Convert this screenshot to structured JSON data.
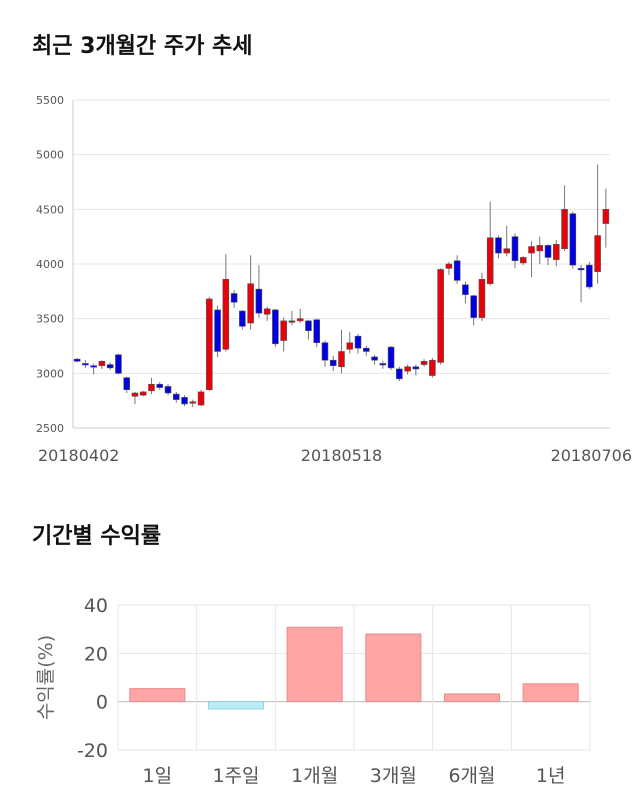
{
  "titles": {
    "price_chart": "최근 3개월간 주가 추세",
    "return_chart": "기간별 수익률"
  },
  "colors": {
    "up": "#e8000b",
    "down": "#0000e0",
    "bar_positive": "#ffa5a5",
    "bar_negative": "#b9ecf6"
  },
  "chart_data": [
    {
      "type": "candlestick",
      "title": "최근 3개월간 주가 추세",
      "ylim": [
        2500,
        5500
      ],
      "yticks": [
        2500,
        3000,
        3500,
        4000,
        4500,
        5000,
        5500
      ],
      "xtick_labels": [
        "20180402",
        "20180518",
        "20180706"
      ],
      "xtick_index": [
        0,
        32,
        64
      ],
      "grid": true,
      "candles": [
        [
          3130,
          3110,
          3140,
          3100
        ],
        [
          3090,
          3080,
          3120,
          3050
        ],
        [
          3070,
          3060,
          3090,
          2990
        ],
        [
          3070,
          3110,
          3120,
          3040
        ],
        [
          3080,
          3050,
          3100,
          3030
        ],
        [
          3170,
          3000,
          3180,
          2990
        ],
        [
          2960,
          2850,
          2970,
          2820
        ],
        [
          2790,
          2820,
          2830,
          2720
        ],
        [
          2800,
          2830,
          2840,
          2790
        ],
        [
          2840,
          2900,
          2960,
          2810
        ],
        [
          2900,
          2870,
          2920,
          2850
        ],
        [
          2880,
          2820,
          2900,
          2800
        ],
        [
          2810,
          2760,
          2830,
          2730
        ],
        [
          2780,
          2720,
          2800,
          2700
        ],
        [
          2730,
          2740,
          2760,
          2690
        ],
        [
          2710,
          2830,
          2850,
          2700
        ],
        [
          2850,
          3680,
          3700,
          2840
        ],
        [
          3580,
          3200,
          3620,
          3150
        ],
        [
          3220,
          3860,
          4090,
          3200
        ],
        [
          3730,
          3650,
          3760,
          3600
        ],
        [
          3570,
          3430,
          3580,
          3400
        ],
        [
          3460,
          3820,
          4080,
          3400
        ],
        [
          3770,
          3550,
          3990,
          3510
        ],
        [
          3540,
          3590,
          3610,
          3480
        ],
        [
          3580,
          3270,
          3590,
          3240
        ],
        [
          3300,
          3480,
          3510,
          3200
        ],
        [
          3480,
          3480,
          3570,
          3440
        ],
        [
          3480,
          3500,
          3590,
          3460
        ],
        [
          3480,
          3390,
          3490,
          3310
        ],
        [
          3490,
          3280,
          3500,
          3240
        ],
        [
          3280,
          3120,
          3300,
          3060
        ],
        [
          3120,
          3070,
          3160,
          3020
        ],
        [
          3060,
          3200,
          3400,
          3000
        ],
        [
          3220,
          3280,
          3380,
          3180
        ],
        [
          3340,
          3230,
          3360,
          3180
        ],
        [
          3230,
          3200,
          3250,
          3160
        ],
        [
          3150,
          3120,
          3170,
          3080
        ],
        [
          3090,
          3080,
          3110,
          3040
        ],
        [
          3240,
          3050,
          3250,
          3030
        ],
        [
          3040,
          2950,
          3060,
          2930
        ],
        [
          3020,
          3060,
          3080,
          2990
        ],
        [
          3060,
          3040,
          3080,
          2980
        ],
        [
          3080,
          3110,
          3130,
          3060
        ],
        [
          2980,
          3120,
          3140,
          2960
        ],
        [
          3100,
          3950,
          3960,
          3080
        ],
        [
          3960,
          4000,
          4020,
          3900
        ],
        [
          4030,
          3850,
          4080,
          3820
        ],
        [
          3810,
          3720,
          3840,
          3640
        ],
        [
          3710,
          3510,
          3720,
          3440
        ],
        [
          3510,
          3860,
          3920,
          3480
        ],
        [
          3820,
          4240,
          4570,
          3800
        ],
        [
          4240,
          4100,
          4260,
          4050
        ],
        [
          4100,
          4140,
          4350,
          4070
        ],
        [
          4250,
          4030,
          4280,
          3960
        ],
        [
          4010,
          4060,
          4070,
          3990
        ],
        [
          4100,
          4160,
          4210,
          3880
        ],
        [
          4120,
          4170,
          4250,
          4000
        ],
        [
          4170,
          4060,
          4180,
          3990
        ],
        [
          4040,
          4180,
          4220,
          3980
        ],
        [
          4140,
          4500,
          4720,
          4120
        ],
        [
          4460,
          3990,
          4480,
          3960
        ],
        [
          3960,
          3950,
          3990,
          3650
        ],
        [
          3990,
          3790,
          4020,
          3770
        ],
        [
          3930,
          4260,
          4910,
          3820
        ],
        [
          4370,
          4500,
          4690,
          4150
        ]
      ]
    },
    {
      "type": "bar",
      "categories": [
        "1일",
        "1주일",
        "1개월",
        "3개월",
        "6개월",
        "1년"
      ],
      "values": [
        5.4,
        -3.0,
        30.8,
        28.0,
        3.2,
        7.4
      ],
      "ylim": [
        -20,
        40
      ],
      "yticks": [
        -20,
        0,
        20,
        40
      ],
      "ylabel": "수익률(%)",
      "grid": true
    }
  ]
}
